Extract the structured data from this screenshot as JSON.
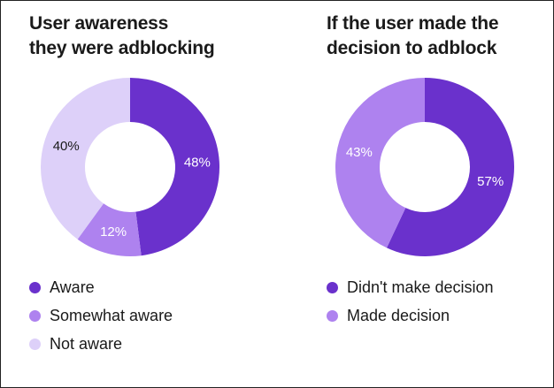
{
  "chart_data": [
    {
      "type": "pie",
      "title_lines": [
        "User awareness",
        "they were adblocking"
      ],
      "slices": [
        {
          "label": "Aware",
          "value": 48,
          "value_label": "48%",
          "color": "#6a31cc",
          "text_color": "#ffffff"
        },
        {
          "label": "Somewhat aware",
          "value": 12,
          "value_label": "12%",
          "color": "#ae82ef",
          "text_color": "#ffffff"
        },
        {
          "label": "Not aware",
          "value": 40,
          "value_label": "40%",
          "color": "#ddd0f9",
          "text_color": "#1a1a1a"
        }
      ]
    },
    {
      "type": "pie",
      "title_lines": [
        "If the user made the",
        "decision to adblock"
      ],
      "slices": [
        {
          "label": "Didn't make decision",
          "value": 57,
          "value_label": "57%",
          "color": "#6a31cc",
          "text_color": "#ffffff"
        },
        {
          "label": "Made decision",
          "value": 43,
          "value_label": "43%",
          "color": "#ae82ef",
          "text_color": "#ffffff"
        }
      ]
    }
  ]
}
